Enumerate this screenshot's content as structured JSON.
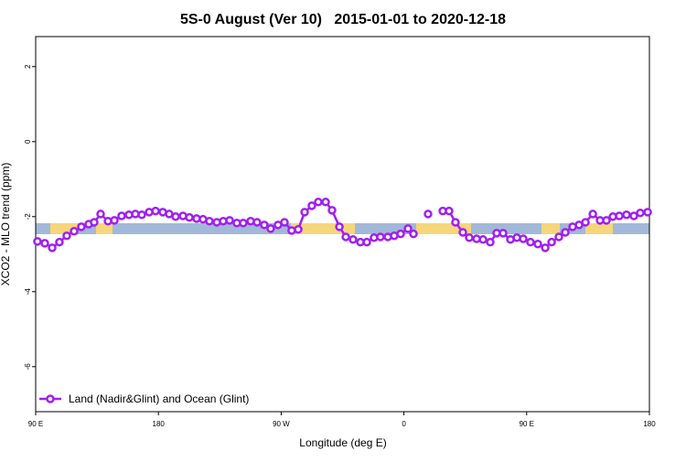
{
  "chart_data": {
    "type": "line",
    "title": "5S-0 August (Ver 10)   2015-01-01 to 2020-12-18",
    "x_label": "Longitude (deg E)",
    "y_label": "XCO2 - MLO trend (ppm)",
    "xlim": [
      90,
      540
    ],
    "xticks": [
      {
        "value": 90,
        "label": "90 E"
      },
      180,
      {
        "value": 270,
        "label": "90 W"
      },
      {
        "value": 360,
        "label": "0"
      },
      {
        "value": 450,
        "label": "90 E"
      },
      {
        "value": 540,
        "label": "180"
      }
    ],
    "ylim": [
      -7.2,
      2.8
    ],
    "yticks": [
      2,
      0,
      -2,
      -4,
      -6
    ],
    "legend": "bottom-left",
    "x": [
      91.3,
      96.7,
      102.1,
      107.4,
      112.8,
      118.2,
      123.5,
      128.9,
      132.9,
      137.6,
      143.0,
      147.7,
      153.0,
      158.4,
      163.1,
      167.8,
      173.2,
      177.9,
      183.2,
      187.9,
      192.6,
      198.0,
      202.7,
      208.0,
      212.7,
      217.4,
      222.8,
      227.5,
      232.2,
      237.5,
      242.2,
      247.6,
      252.3,
      257.6,
      262.3,
      267.7,
      272.4,
      277.7,
      282.5,
      287.2,
      292.5,
      297.2,
      302.6,
      307.3,
      312.7,
      317.4,
      322.7,
      328.1,
      332.8,
      338.1,
      342.8,
      348.2,
      352.9,
      357.6,
      363.0,
      367.0,
      372.0,
      377.7,
      383.0,
      388.5,
      393.1,
      397.8,
      403.2,
      407.9,
      413.3,
      418.0,
      423.3,
      428.0,
      432.7,
      438.1,
      442.8,
      447.5,
      452.8,
      458.2,
      463.6,
      468.3,
      473.6,
      478.3,
      483.7,
      488.4,
      493.1,
      498.5,
      503.8,
      508.5,
      513.2,
      517.9,
      523.2,
      528.6,
      533.3,
      538.7
    ],
    "series": [
      {
        "name": "Land (Nadir&Glint) and Ocean (Glint)",
        "color": "#a020f0",
        "values": [
          -2.66,
          -2.71,
          -2.83,
          -2.68,
          -2.51,
          -2.39,
          -2.27,
          -2.2,
          -2.15,
          -1.93,
          -2.12,
          -2.1,
          -1.98,
          -1.95,
          -1.93,
          -1.95,
          -1.88,
          -1.85,
          -1.88,
          -1.93,
          -2.0,
          -1.98,
          -2.02,
          -2.05,
          -2.07,
          -2.12,
          -2.15,
          -2.12,
          -2.1,
          -2.17,
          -2.17,
          -2.12,
          -2.15,
          -2.22,
          -2.32,
          -2.22,
          -2.15,
          -2.37,
          -2.34,
          -1.88,
          -1.71,
          -1.61,
          -1.61,
          -1.83,
          -2.27,
          -2.54,
          -2.61,
          -2.68,
          -2.68,
          -2.56,
          -2.54,
          -2.54,
          -2.51,
          -2.46,
          -2.32,
          -2.46,
          null,
          -1.93,
          null,
          -1.85,
          -1.85,
          -2.15,
          -2.42,
          -2.56,
          -2.59,
          -2.61,
          -2.68,
          -2.44,
          -2.44,
          -2.61,
          -2.56,
          -2.59,
          -2.68,
          -2.73,
          -2.83,
          -2.68,
          -2.54,
          -2.42,
          -2.27,
          -2.22,
          -2.15,
          -1.93,
          -2.1,
          -2.1,
          -2.0,
          -1.98,
          -1.95,
          -1.98,
          -1.9,
          -1.88
        ]
      }
    ]
  }
}
